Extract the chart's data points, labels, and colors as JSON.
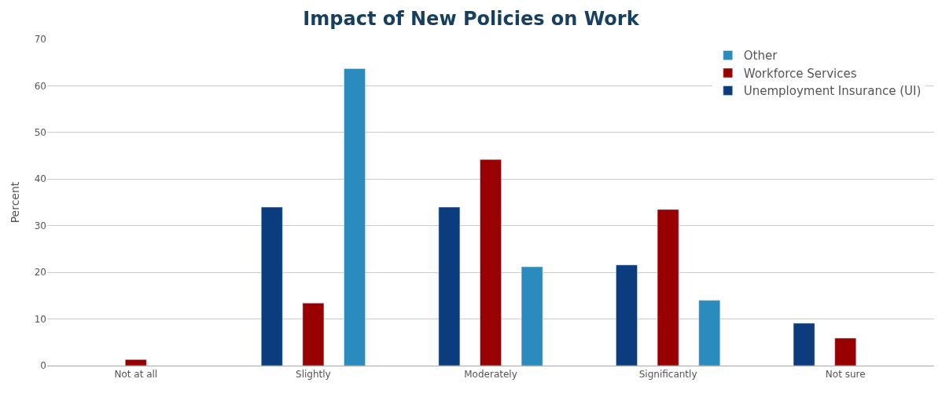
{
  "chart_data": {
    "type": "bar",
    "title": "Impact of New Policies on Work",
    "ylabel": "Percent",
    "categories": [
      "Not at all",
      "Slightly",
      "Moderately",
      "Significantly",
      "Not sure"
    ],
    "series": [
      {
        "name": "Unemployment Insurance (UI)",
        "color": "#0b3d7e",
        "values": [
          null,
          34.0,
          34.0,
          21.6,
          9.1
        ]
      },
      {
        "name": "Workforce Services",
        "color": "#990000",
        "values": [
          1.3,
          13.4,
          44.2,
          33.5,
          5.9
        ]
      },
      {
        "name": "Other",
        "color": "#2b8bbf",
        "values": [
          null,
          63.7,
          21.2,
          14.0,
          null
        ]
      }
    ],
    "ylim": [
      0,
      70
    ],
    "yticks": [
      0,
      10,
      20,
      30,
      40,
      50,
      60,
      70
    ],
    "grid": "y",
    "legend": "top right"
  }
}
